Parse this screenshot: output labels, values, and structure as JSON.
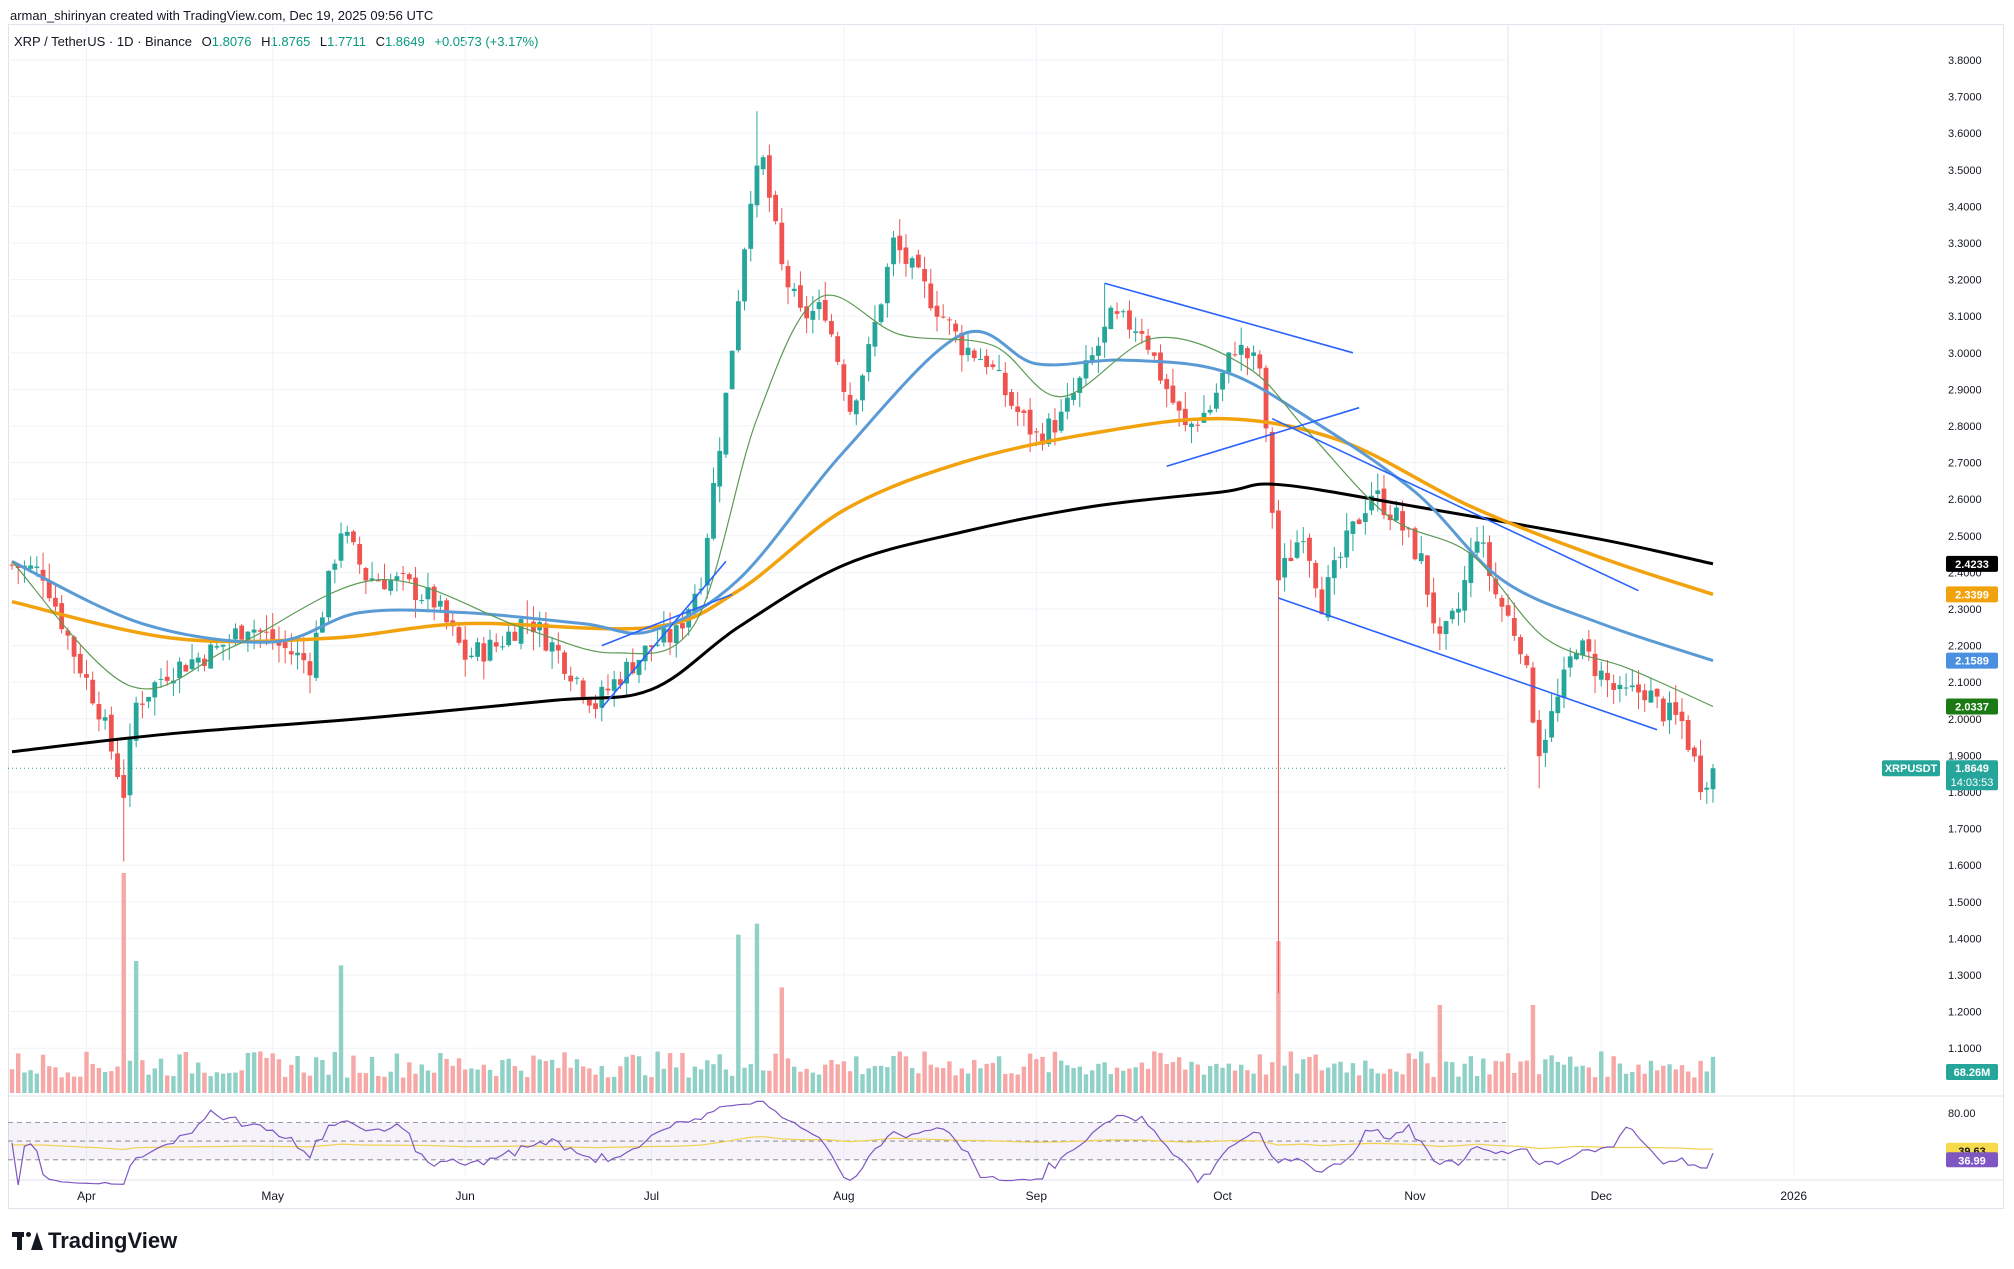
{
  "header": {
    "created_by": "arman_shirinyan created with TradingView.com, Dec 19, 2025 09:56 UTC",
    "symbol": "XRP / TetherUS · 1D · Binance",
    "o_label": "O",
    "o_value": "1.8076",
    "h_label": "H",
    "h_value": "1.8765",
    "l_label": "L",
    "l_value": "1.7711",
    "c_label": "C",
    "c_value": "1.8649",
    "change": "+0.0573 (+3.17%)"
  },
  "brand": "TradingView",
  "colors": {
    "up": "#26a69a",
    "down": "#ef5350",
    "vol_up": "#8fd0c7",
    "vol_down": "#f7a7a6",
    "ma_black": "#000000",
    "ma_orange": "#f2a20c",
    "ma_blue": "#5b9bd5",
    "ma_green": "#5c9a55",
    "trendline": "#2962ff",
    "rsi": "#7e57c2",
    "rsi_ma": "#f3d14f"
  },
  "chart_data": {
    "type": "candlestick",
    "title": "XRP / TetherUS · 1D · Binance",
    "xlabel": "",
    "ylabel": "",
    "x_labels": [
      "Apr",
      "May",
      "Jun",
      "Jul",
      "Aug",
      "Sep",
      "Oct",
      "Nov",
      "Dec",
      "2026"
    ],
    "y_ticks": [
      "3.8000",
      "3.7000",
      "3.6000",
      "3.5000",
      "3.4000",
      "3.3000",
      "3.2000",
      "3.1000",
      "3.0000",
      "2.9000",
      "2.8000",
      "2.7000",
      "2.6000",
      "2.5000",
      "2.4000",
      "2.3000",
      "2.2000",
      "2.1000",
      "2.0000",
      "1.9000",
      "1.8000",
      "1.7000",
      "1.6000",
      "1.5000",
      "1.4000",
      "1.3000",
      "1.2000",
      "1.1000"
    ],
    "ylim": [
      1.04,
      3.84
    ],
    "price_anchors": [
      [
        "2025-03-20",
        2.42
      ],
      [
        "2025-03-25",
        2.4
      ],
      [
        "2025-03-30",
        2.18
      ],
      [
        "2025-04-03",
        2.03
      ],
      [
        "2025-04-07",
        1.8
      ],
      [
        "2025-04-09",
        2.04
      ],
      [
        "2025-04-14",
        2.13
      ],
      [
        "2025-04-22",
        2.19
      ],
      [
        "2025-04-27",
        2.26
      ],
      [
        "2025-05-02",
        2.2
      ],
      [
        "2025-05-07",
        2.15
      ],
      [
        "2025-05-12",
        2.52
      ],
      [
        "2025-05-16",
        2.39
      ],
      [
        "2025-05-22",
        2.37
      ],
      [
        "2025-05-27",
        2.32
      ],
      [
        "2025-06-01",
        2.17
      ],
      [
        "2025-06-06",
        2.2
      ],
      [
        "2025-06-11",
        2.28
      ],
      [
        "2025-06-16",
        2.18
      ],
      [
        "2025-06-22",
        2.04
      ],
      [
        "2025-06-26",
        2.12
      ],
      [
        "2025-07-01",
        2.2
      ],
      [
        "2025-07-05",
        2.23
      ],
      [
        "2025-07-09",
        2.39
      ],
      [
        "2025-07-13",
        2.88
      ],
      [
        "2025-07-17",
        3.44
      ],
      [
        "2025-07-19",
        3.52
      ],
      [
        "2025-07-22",
        3.23
      ],
      [
        "2025-07-25",
        3.1
      ],
      [
        "2025-07-29",
        3.12
      ],
      [
        "2025-08-02",
        2.85
      ],
      [
        "2025-08-05",
        3.0
      ],
      [
        "2025-08-09",
        3.3
      ],
      [
        "2025-08-13",
        3.2
      ],
      [
        "2025-08-17",
        3.1
      ],
      [
        "2025-08-20",
        3.02
      ],
      [
        "2025-08-24",
        2.98
      ],
      [
        "2025-08-28",
        2.86
      ],
      [
        "2025-09-01",
        2.77
      ],
      [
        "2025-09-05",
        2.82
      ],
      [
        "2025-09-09",
        2.95
      ],
      [
        "2025-09-13",
        3.09
      ],
      [
        "2025-09-18",
        3.07
      ],
      [
        "2025-09-21",
        2.94
      ],
      [
        "2025-09-25",
        2.79
      ],
      [
        "2025-09-29",
        2.85
      ],
      [
        "2025-10-03",
        3.02
      ],
      [
        "2025-10-07",
        2.96
      ],
      [
        "2025-10-10",
        2.38
      ],
      [
        "2025-10-14",
        2.52
      ],
      [
        "2025-10-17",
        2.32
      ],
      [
        "2025-10-21",
        2.48
      ],
      [
        "2025-10-25",
        2.62
      ],
      [
        "2025-10-29",
        2.55
      ],
      [
        "2025-11-02",
        2.43
      ],
      [
        "2025-11-05",
        2.2
      ],
      [
        "2025-11-08",
        2.3
      ],
      [
        "2025-11-11",
        2.51
      ],
      [
        "2025-11-14",
        2.34
      ],
      [
        "2025-11-18",
        2.21
      ],
      [
        "2025-11-21",
        1.92
      ],
      [
        "2025-11-24",
        2.05
      ],
      [
        "2025-11-27",
        2.21
      ],
      [
        "2025-12-01",
        2.12
      ],
      [
        "2025-12-04",
        2.06
      ],
      [
        "2025-12-08",
        2.08
      ],
      [
        "2025-12-11",
        2.02
      ],
      [
        "2025-12-14",
        1.99
      ],
      [
        "2025-12-17",
        1.83
      ],
      [
        "2025-12-19",
        1.86
      ]
    ],
    "last_candle": {
      "open": 1.8076,
      "high": 1.8765,
      "low": 1.7711,
      "close": 1.8649
    },
    "ma_lines": [
      {
        "color": "ma_black",
        "points": [
          [
            "2025-03-20",
            1.91
          ],
          [
            "2025-04-15",
            1.96
          ],
          [
            "2025-05-15",
            2.0
          ],
          [
            "2025-06-15",
            2.05
          ],
          [
            "2025-07-01",
            2.08
          ],
          [
            "2025-07-15",
            2.25
          ],
          [
            "2025-08-01",
            2.42
          ],
          [
            "2025-08-20",
            2.51
          ],
          [
            "2025-09-10",
            2.58
          ],
          [
            "2025-10-01",
            2.62
          ],
          [
            "2025-10-10",
            2.64
          ],
          [
            "2025-11-01",
            2.58
          ],
          [
            "2025-12-01",
            2.49
          ],
          [
            "2025-12-19",
            2.4233
          ]
        ]
      },
      {
        "color": "ma_orange",
        "points": [
          [
            "2025-03-20",
            2.32
          ],
          [
            "2025-04-15",
            2.22
          ],
          [
            "2025-05-10",
            2.22
          ],
          [
            "2025-06-01",
            2.26
          ],
          [
            "2025-07-01",
            2.25
          ],
          [
            "2025-07-15",
            2.35
          ],
          [
            "2025-08-01",
            2.57
          ],
          [
            "2025-08-20",
            2.7
          ],
          [
            "2025-09-10",
            2.78
          ],
          [
            "2025-10-01",
            2.82
          ],
          [
            "2025-10-20",
            2.76
          ],
          [
            "2025-11-10",
            2.58
          ],
          [
            "2025-12-01",
            2.44
          ],
          [
            "2025-12-19",
            2.3399
          ]
        ]
      },
      {
        "color": "ma_blue",
        "points": [
          [
            "2025-03-20",
            2.43
          ],
          [
            "2025-04-10",
            2.26
          ],
          [
            "2025-05-01",
            2.21
          ],
          [
            "2025-05-15",
            2.29
          ],
          [
            "2025-06-01",
            2.29
          ],
          [
            "2025-06-20",
            2.26
          ],
          [
            "2025-07-01",
            2.24
          ],
          [
            "2025-07-15",
            2.38
          ],
          [
            "2025-08-01",
            2.73
          ],
          [
            "2025-08-20",
            3.05
          ],
          [
            "2025-09-01",
            2.97
          ],
          [
            "2025-09-15",
            2.98
          ],
          [
            "2025-10-01",
            2.95
          ],
          [
            "2025-10-15",
            2.82
          ],
          [
            "2025-11-01",
            2.62
          ],
          [
            "2025-11-15",
            2.38
          ],
          [
            "2025-12-01",
            2.26
          ],
          [
            "2025-12-19",
            2.1589
          ]
        ]
      },
      {
        "color": "ma_green",
        "points": [
          [
            "2025-03-20",
            2.43
          ],
          [
            "2025-04-08",
            2.09
          ],
          [
            "2025-04-25",
            2.2
          ],
          [
            "2025-05-18",
            2.38
          ],
          [
            "2025-06-10",
            2.25
          ],
          [
            "2025-06-25",
            2.18
          ],
          [
            "2025-07-08",
            2.26
          ],
          [
            "2025-07-18",
            2.82
          ],
          [
            "2025-07-28",
            3.15
          ],
          [
            "2025-08-10",
            3.05
          ],
          [
            "2025-08-25",
            3.02
          ],
          [
            "2025-09-05",
            2.88
          ],
          [
            "2025-09-20",
            3.04
          ],
          [
            "2025-10-05",
            2.96
          ],
          [
            "2025-10-15",
            2.78
          ],
          [
            "2025-10-28",
            2.55
          ],
          [
            "2025-11-10",
            2.45
          ],
          [
            "2025-11-22",
            2.22
          ],
          [
            "2025-12-05",
            2.14
          ],
          [
            "2025-12-19",
            2.0337
          ]
        ]
      }
    ],
    "trendlines": [
      [
        [
          "2025-06-23",
          2.03
        ],
        [
          "2025-07-13",
          2.43
        ]
      ],
      [
        [
          "2025-06-23",
          2.2
        ],
        [
          "2025-07-14",
          2.34
        ]
      ],
      [
        [
          "2025-09-12",
          3.19
        ],
        [
          "2025-10-22",
          3.0
        ]
      ],
      [
        [
          "2025-09-22",
          2.69
        ],
        [
          "2025-10-23",
          2.85
        ]
      ],
      [
        [
          "2025-10-09",
          2.82
        ],
        [
          "2025-12-07",
          2.35
        ]
      ],
      [
        [
          "2025-10-10",
          2.33
        ],
        [
          "2025-12-10",
          1.97
        ]
      ]
    ],
    "volume_spikes": [
      [
        "2025-04-07",
        1.0
      ],
      [
        "2025-04-09",
        0.6
      ],
      [
        "2025-05-12",
        0.58
      ],
      [
        "2025-07-15",
        0.72
      ],
      [
        "2025-07-18",
        0.77
      ],
      [
        "2025-07-22",
        0.48
      ],
      [
        "2025-10-10",
        0.69
      ],
      [
        "2025-11-05",
        0.4
      ],
      [
        "2025-11-20",
        0.4
      ]
    ],
    "rsi_ticks": [
      "80.00"
    ],
    "labels": {
      "ma_black": "2.4233",
      "ma_orange": "2.3399",
      "ma_blue": "2.1589",
      "ma_green": "2.0337",
      "symbol_tag": "XRPUSDT",
      "last_price": "1.8649",
      "countdown": "14:03:53",
      "volume": "68.26M",
      "rsi_ma": "39.63",
      "rsi": "36.99"
    }
  }
}
